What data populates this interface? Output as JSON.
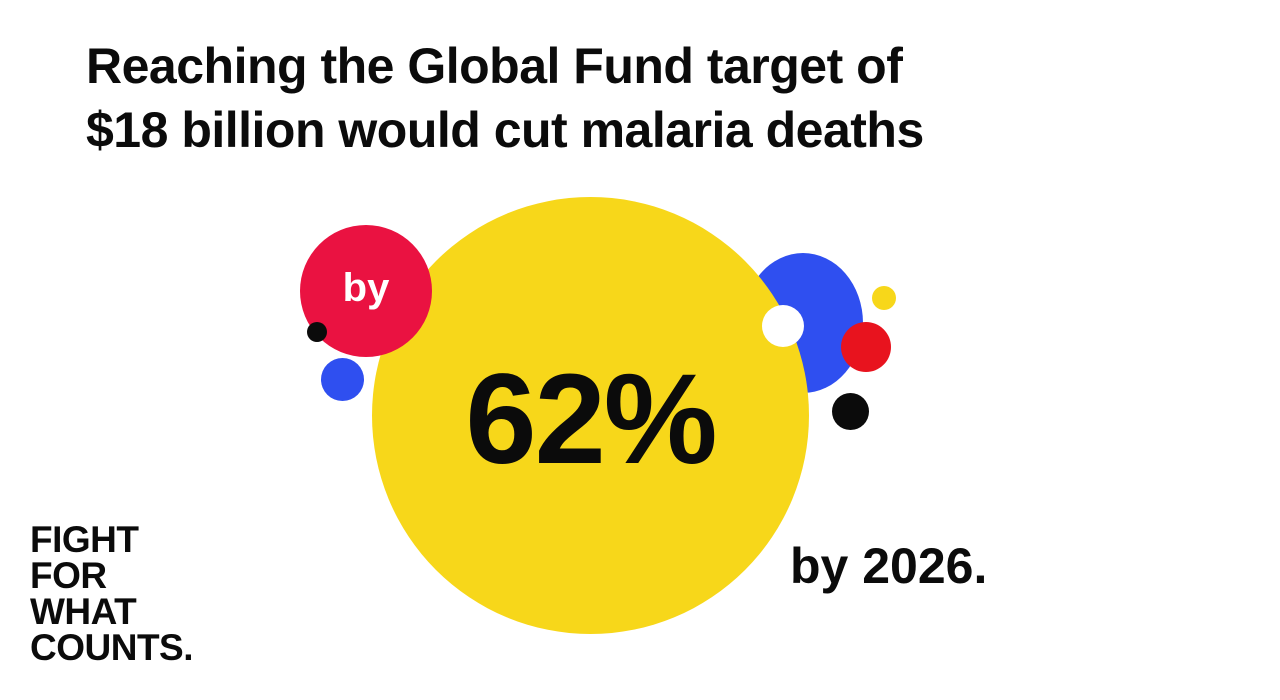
{
  "headline": {
    "line1": "Reaching the Global Fund target of",
    "line2": "$18 billion would cut malaria deaths"
  },
  "graphic": {
    "by_label": "by",
    "percent": "62%",
    "by_year": "by 2026."
  },
  "logo": {
    "lines": [
      "FIGHT",
      "FOR",
      "WHAT",
      "COUNTS."
    ]
  },
  "colors": {
    "background": "#ffffff",
    "yellow": "#f7d71a",
    "red_pink": "#ea1241",
    "red": "#e8131e",
    "blue": "#2f4ff0",
    "black": "#0b0b0b"
  }
}
